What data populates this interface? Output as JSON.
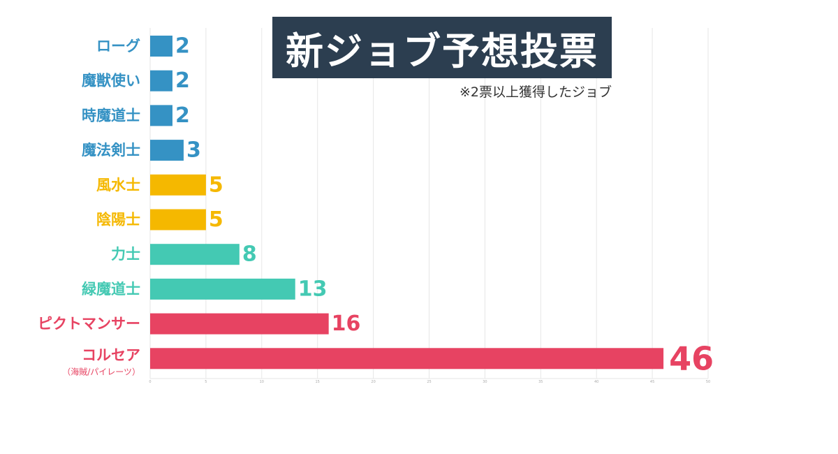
{
  "title": "新ジョブ予想投票",
  "subtitle": "※2票以上獲得したジョブ",
  "chart_data": {
    "type": "bar",
    "orientation": "horizontal",
    "title": "新ジョブ予想投票",
    "subtitle": "※2票以上獲得したジョブ",
    "xlim": [
      0,
      50
    ],
    "x_ticks": [
      0,
      5,
      10,
      15,
      20,
      25,
      30,
      35,
      40,
      45,
      50
    ],
    "grid": true,
    "categories": [
      "ローグ",
      "魔獣使い",
      "時魔道士",
      "魔法剣士",
      "風水士",
      "陰陽士",
      "力士",
      "緑魔道士",
      "ピクトマンサー",
      "コルセア"
    ],
    "category_notes": [
      "",
      "",
      "",
      "",
      "",
      "",
      "",
      "",
      "",
      "（海賊/パイレーツ）"
    ],
    "values": [
      2,
      2,
      2,
      3,
      5,
      5,
      8,
      13,
      16,
      46
    ],
    "colors": [
      "#3592c4",
      "#3592c4",
      "#3592c4",
      "#3592c4",
      "#f5b800",
      "#f5b800",
      "#44c9b3",
      "#44c9b3",
      "#e74362",
      "#e74362"
    ]
  }
}
